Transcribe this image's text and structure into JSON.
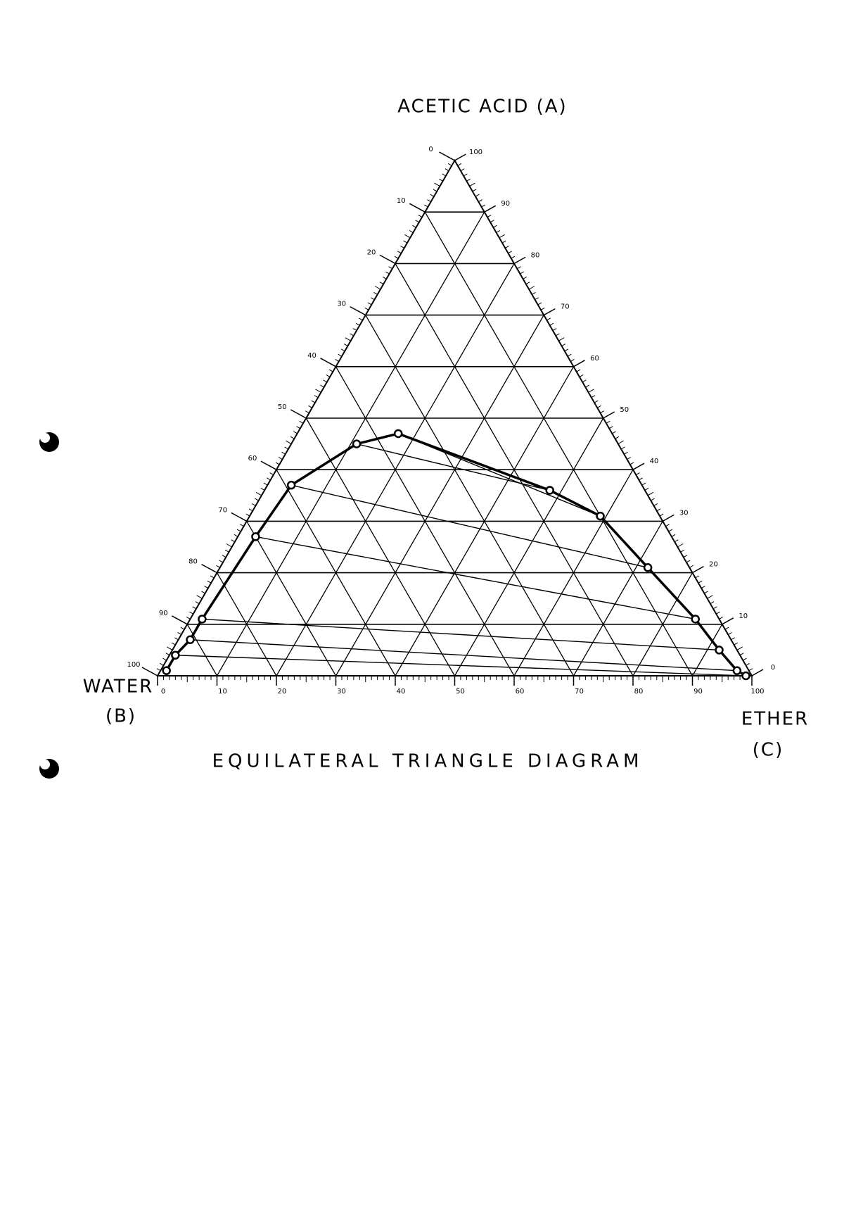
{
  "chart_data": {
    "type": "ternary",
    "title": "EQUILATERAL TRIANGLE DIAGRAM",
    "top_label": "ACETIC ACID (A)",
    "left_label": [
      "WATER",
      "(B)"
    ],
    "right_label": [
      "ETHER",
      "(C)"
    ],
    "acid_ticks": [
      0,
      10,
      20,
      30,
      40,
      50,
      60,
      70,
      80,
      90,
      100
    ],
    "water_ticks": [
      0,
      10,
      20,
      30,
      40,
      50,
      60,
      70,
      80,
      90,
      100
    ],
    "ether_ticks": [
      0,
      10,
      20,
      30,
      40,
      50,
      60,
      70,
      80,
      90,
      100
    ],
    "color": "#000000",
    "binodal": {
      "acid": [
        1,
        4,
        7,
        11,
        27,
        37,
        45,
        47,
        36,
        31,
        21,
        11,
        5,
        1,
        0
      ],
      "ether": [
        1,
        1,
        2,
        2,
        3,
        4,
        11,
        17,
        48,
        59,
        72,
        85,
        92,
        97,
        99
      ]
    },
    "tie_lines": [
      {
        "water_phase": [
          45,
          11
        ],
        "ether_phase": [
          36,
          48
        ]
      },
      {
        "water_phase": [
          47,
          17
        ],
        "ether_phase": [
          31,
          59
        ]
      },
      {
        "water_phase": [
          37,
          4
        ],
        "ether_phase": [
          21,
          72
        ]
      },
      {
        "water_phase": [
          27,
          3
        ],
        "ether_phase": [
          11,
          85
        ]
      },
      {
        "water_phase": [
          11,
          2
        ],
        "ether_phase": [
          5,
          92
        ]
      },
      {
        "water_phase": [
          7,
          2
        ],
        "ether_phase": [
          1,
          97
        ]
      },
      {
        "water_phase": [
          4,
          1
        ],
        "ether_phase": [
          0,
          99
        ]
      }
    ]
  }
}
